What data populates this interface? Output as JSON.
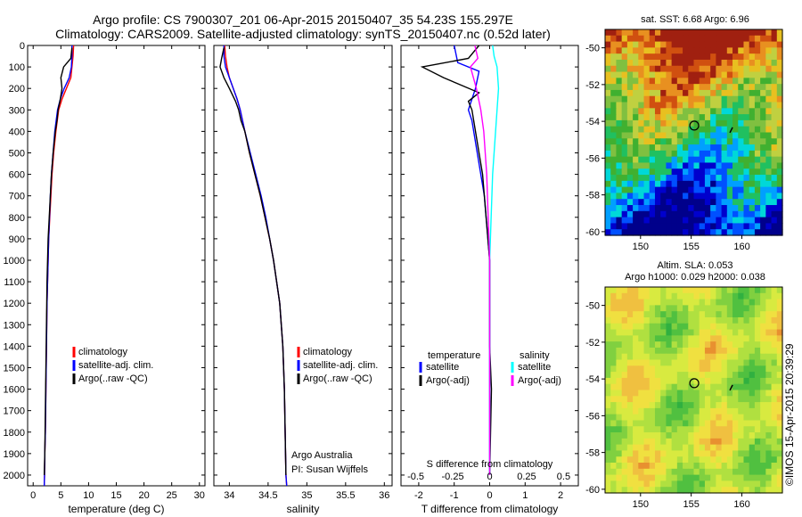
{
  "header": {
    "title_line1": "Argo profile: CS 7900307_201 06-Apr-2015 20150407_35 54.23S 155.297E",
    "title_line2": "Climatology: CARS2009. Satellite-adjusted climatology: synTS_20150407.nc (0.52d later)"
  },
  "maps": {
    "sst_title": "sat. SST: 6.68 Argo: 6.96",
    "sla_title_line1": "Altim. SLA: 0.053",
    "sla_title_line2": "Argo h1000: 0.029 h2000: 0.038",
    "stamp": "©IMOS 15-Apr-2015 20:39:29",
    "lat_ticks": [
      "-50",
      "-52",
      "-54",
      "-56",
      "-58",
      "-60"
    ],
    "lon_ticks": [
      "150",
      "155",
      "160"
    ],
    "float_lon": 155.3,
    "float_lat": -54.23
  },
  "colors": {
    "climatology": "#ff0000",
    "satellite": "#0000ff",
    "argo": "#000000",
    "salinity_satellite": "#00ffff",
    "salinity_argo": "#ff00ff"
  },
  "chart_data": [
    {
      "type": "line",
      "xlabel": "temperature (deg C)",
      "ylabel": "",
      "xlim": [
        -1,
        31
      ],
      "ylim": [
        2050,
        0
      ],
      "x_ticks": [
        "0",
        "5",
        "10",
        "15",
        "20",
        "25",
        "30"
      ],
      "y_ticks": [
        "0",
        "100",
        "200",
        "300",
        "400",
        "500",
        "600",
        "700",
        "800",
        "900",
        "1000",
        "1100",
        "1200",
        "1300",
        "1400",
        "1500",
        "1600",
        "1700",
        "1800",
        "1900",
        "2000"
      ],
      "legend": [
        "climatology",
        "satellite-adj. clim.",
        "Argo(..raw -QC)"
      ],
      "series": [
        {
          "name": "climatology",
          "x": [
            7.3,
            7.2,
            7.0,
            6.8,
            6.0,
            5.2,
            4.6,
            4.1,
            3.7,
            3.4,
            3.2,
            3.0,
            2.8,
            2.7,
            2.6,
            2.5,
            2.4,
            2.3,
            2.2,
            2.1,
            2.05,
            2.0
          ],
          "y": [
            0,
            50,
            100,
            150,
            200,
            250,
            300,
            400,
            500,
            600,
            700,
            800,
            900,
            1000,
            1100,
            1200,
            1400,
            1600,
            1800,
            1900,
            2000,
            2050
          ]
        },
        {
          "name": "satellite-adj. clim.",
          "x": [
            7.0,
            7.0,
            6.9,
            6.5,
            5.6,
            4.9,
            4.4,
            3.9,
            3.6,
            3.3,
            3.1,
            2.95,
            2.8,
            2.7,
            2.6,
            2.5,
            2.4,
            2.3,
            2.2,
            2.1,
            2.05,
            2.0
          ],
          "y": [
            0,
            50,
            100,
            150,
            200,
            250,
            300,
            400,
            500,
            600,
            700,
            800,
            900,
            1000,
            1100,
            1200,
            1400,
            1600,
            1800,
            1900,
            2000,
            2050
          ]
        },
        {
          "name": "Argo(..raw -QC)",
          "x": [
            7.0,
            6.8,
            5.5,
            5.0,
            5.2,
            4.9,
            4.5,
            4.3,
            4.0,
            3.6,
            3.3,
            3.1,
            2.9,
            2.7,
            2.6,
            2.5,
            2.4,
            2.3,
            2.2,
            2.1,
            2.0
          ],
          "y": [
            10,
            60,
            100,
            150,
            200,
            250,
            300,
            350,
            400,
            500,
            600,
            700,
            800,
            900,
            1000,
            1100,
            1300,
            1500,
            1700,
            1900,
            2000
          ]
        }
      ]
    },
    {
      "type": "line",
      "xlabel": "salinity",
      "xlim": [
        33.8,
        36.1
      ],
      "ylim": [
        2050,
        0
      ],
      "x_ticks": [
        "34",
        "34.5",
        "35",
        "35.5",
        "36"
      ],
      "legend": [
        "climatology",
        "satellite-adj. clim.",
        "Argo(..raw -QC)"
      ],
      "annotation_line1": "Argo Australia",
      "annotation_line2": "PI: Susan Wijffels",
      "series": [
        {
          "name": "climatology",
          "x": [
            33.94,
            33.95,
            33.97,
            34.0,
            34.05,
            34.1,
            34.14,
            34.2,
            34.26,
            34.33,
            34.4,
            34.46,
            34.52,
            34.57,
            34.61,
            34.65,
            34.69,
            34.71,
            34.72,
            34.73,
            34.74
          ],
          "y": [
            0,
            50,
            100,
            150,
            200,
            250,
            300,
            400,
            500,
            600,
            700,
            800,
            900,
            1000,
            1100,
            1200,
            1400,
            1600,
            1800,
            2000,
            2050
          ]
        },
        {
          "name": "satellite-adj. clim.",
          "x": [
            33.93,
            33.93,
            33.95,
            34.0,
            34.05,
            34.1,
            34.14,
            34.2,
            34.27,
            34.34,
            34.41,
            34.47,
            34.52,
            34.57,
            34.61,
            34.65,
            34.69,
            34.71,
            34.72,
            34.73,
            34.74
          ],
          "y": [
            0,
            50,
            100,
            150,
            200,
            250,
            300,
            400,
            500,
            600,
            700,
            800,
            900,
            1000,
            1100,
            1200,
            1400,
            1600,
            1800,
            2000,
            2050
          ]
        },
        {
          "name": "Argo(..raw -QC)",
          "x": [
            33.93,
            33.9,
            33.88,
            33.93,
            34.0,
            34.08,
            34.12,
            34.15,
            34.2,
            34.26,
            34.33,
            34.4,
            34.46,
            34.52,
            34.57,
            34.61,
            34.65,
            34.69,
            34.71,
            34.72,
            34.73
          ],
          "y": [
            10,
            60,
            100,
            150,
            200,
            260,
            300,
            350,
            400,
            500,
            600,
            700,
            800,
            900,
            1000,
            1100,
            1200,
            1400,
            1600,
            1800,
            2000
          ]
        }
      ]
    },
    {
      "type": "line",
      "xlabel": "T difference from climatology",
      "xlabel_top": "S difference from climatology",
      "xlim": [
        -2.5,
        2.5
      ],
      "ylim": [
        2050,
        0
      ],
      "x_ticks": [
        "-2",
        "-1",
        "0",
        "1",
        "2"
      ],
      "x_ticks_top": [
        "-0.5",
        "-0.25",
        "0",
        "0.25",
        "0.5"
      ],
      "legend_left_title": "temperature",
      "legend_right_title": "salinity",
      "legend": [
        "satellite",
        "Argo(-adj)",
        "satellite",
        "Argo(-adj)"
      ],
      "series": [
        {
          "name": "temperature satellite",
          "x": [
            -1.0,
            -0.9,
            -0.3,
            -0.4,
            -0.6,
            -0.5,
            -0.45,
            -0.35,
            -0.25,
            -0.15,
            -0.1,
            -0.05,
            0.0,
            0.0,
            0.0,
            0.0,
            0.0,
            0.0
          ],
          "y": [
            0,
            80,
            120,
            200,
            300,
            350,
            400,
            500,
            600,
            700,
            800,
            900,
            1000,
            1200,
            1400,
            1600,
            1800,
            2000
          ]
        },
        {
          "name": "temperature Argo(-adj)",
          "x": [
            -0.3,
            -0.6,
            -1.9,
            -1.3,
            -0.3,
            -0.6,
            -0.5,
            -0.4,
            -0.3,
            -0.2,
            -0.15,
            -0.1,
            -0.05,
            0.0,
            0.0,
            0.0,
            0.05,
            0.0
          ],
          "y": [
            0,
            60,
            100,
            150,
            220,
            260,
            300,
            400,
            500,
            600,
            700,
            800,
            900,
            1000,
            1200,
            1400,
            1600,
            2000
          ]
        },
        {
          "name": "salinity satellite",
          "x": [
            0.02,
            0.03,
            0.05,
            0.06,
            0.05,
            0.04,
            0.03,
            0.02,
            0.01,
            0.0,
            0.0,
            0.0,
            0.0
          ],
          "y": [
            0,
            50,
            100,
            200,
            300,
            400,
            500,
            600,
            800,
            1000,
            1400,
            1800,
            2000
          ]
        },
        {
          "name": "salinity Argo(-adj)",
          "x": [
            -0.1,
            -0.08,
            -0.13,
            -0.09,
            -0.06,
            -0.04,
            -0.03,
            -0.02,
            -0.01,
            0.0,
            0.0,
            0.0
          ],
          "y": [
            0,
            60,
            100,
            200,
            300,
            400,
            500,
            600,
            800,
            1000,
            1400,
            2000
          ]
        }
      ]
    }
  ]
}
